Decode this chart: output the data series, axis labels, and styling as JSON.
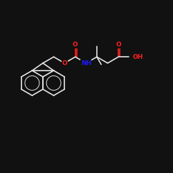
{
  "background_color": "#111111",
  "bond_color": "#e8e8e8",
  "atom_colors": {
    "O": "#ff2020",
    "N": "#1a1aff",
    "C": "#e8e8e8"
  },
  "figsize": [
    2.5,
    2.5
  ],
  "dpi": 100,
  "lw": 1.2,
  "fontsize": 6.5
}
